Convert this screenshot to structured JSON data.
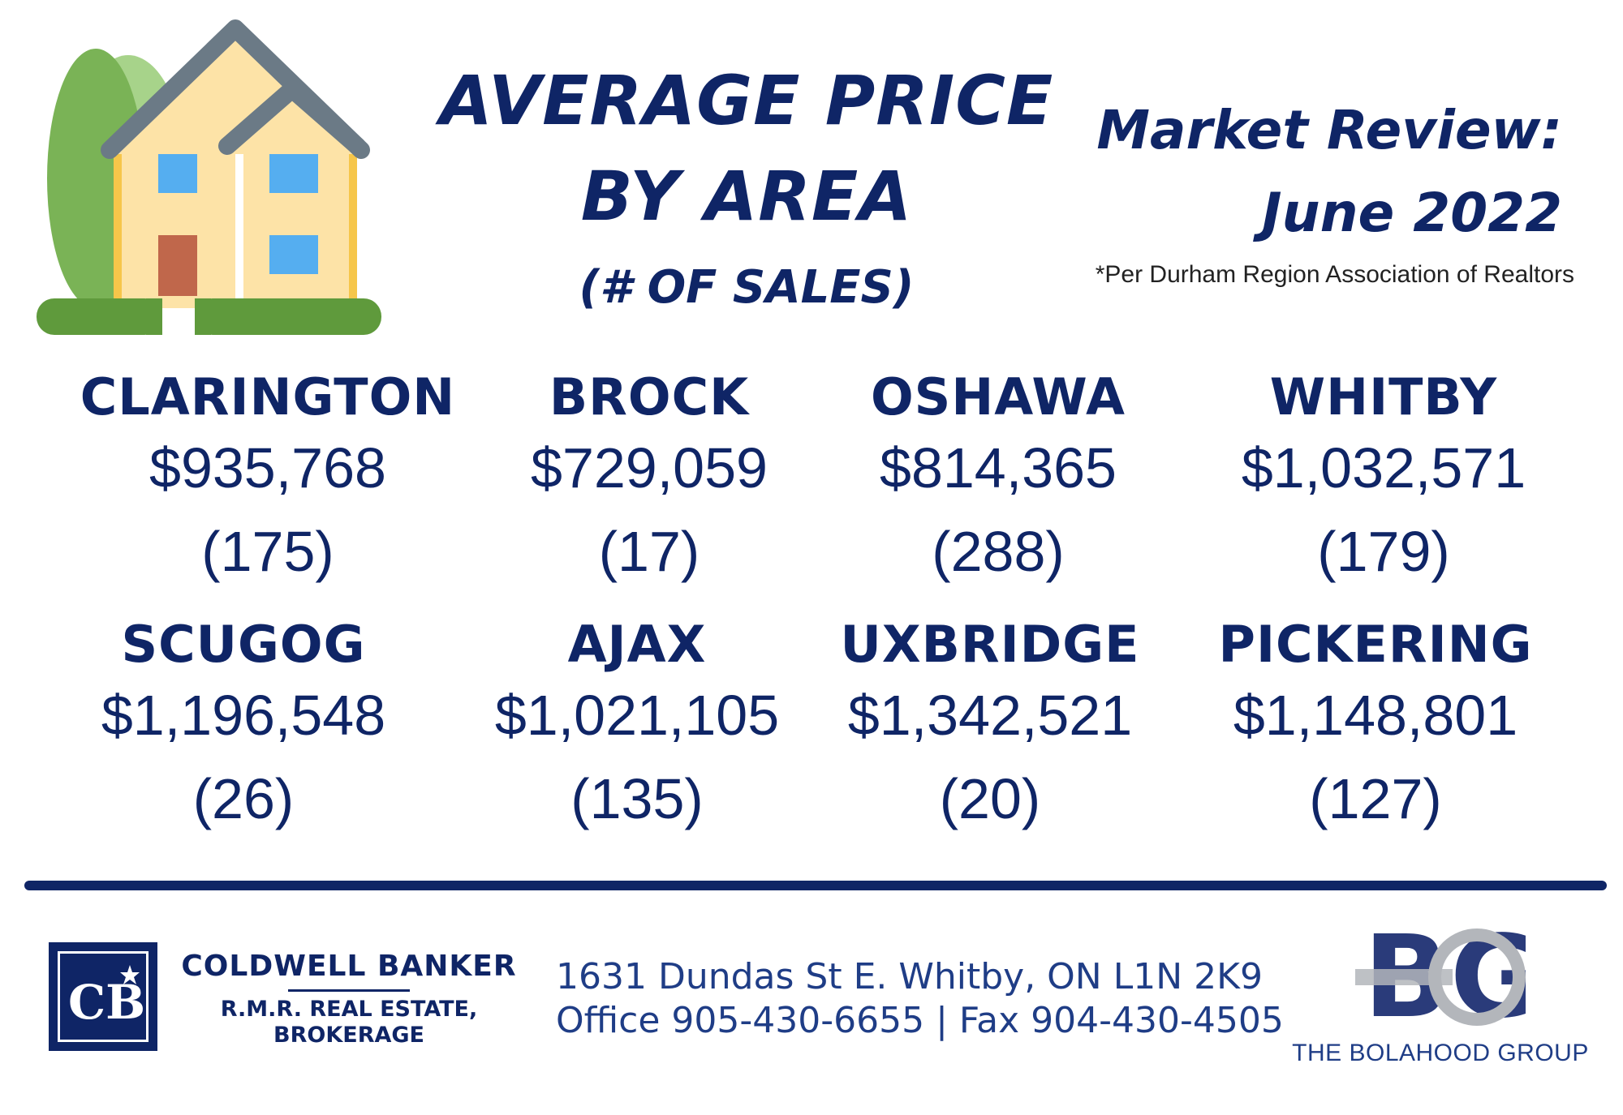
{
  "header": {
    "title_line1": "AVERAGE PRICE",
    "title_line2": "BY AREA",
    "title_line3": "(# OF SALES)",
    "review_line1": "Market Review:",
    "review_line2": "June 2022",
    "source": "*Per Durham Region Association of Realtors"
  },
  "areas": [
    {
      "name": "CLARINGTON",
      "price": "$935,768",
      "sales": "(175)"
    },
    {
      "name": "BROCK",
      "price": "$729,059",
      "sales": "(17)"
    },
    {
      "name": "OSHAWA",
      "price": "$814,365",
      "sales": "(288)"
    },
    {
      "name": "WHITBY",
      "price": "$1,032,571",
      "sales": "(179)"
    },
    {
      "name": "SCUGOG",
      "price": "$1,196,548",
      "sales": "(26)"
    },
    {
      "name": "AJAX",
      "price": "$1,021,105",
      "sales": "(135)"
    },
    {
      "name": "UXBRIDGE",
      "price": "$1,342,521",
      "sales": "(20)"
    },
    {
      "name": "PICKERING",
      "price": "$1,148,801",
      "sales": "(127)"
    }
  ],
  "footer": {
    "brokerage_name": "COLDWELL BANKER",
    "brokerage_line2": "R.M.R. REAL ESTATE,",
    "brokerage_line3": "BROKERAGE",
    "cb_logo_text": "CB",
    "address": "1631 Dundas St E. Whitby, ON L1N 2K9",
    "phones": "Office 905-430-6655 | Fax 904-430-4505",
    "group_logo_text": "BG",
    "group_name": "THE BOLAHOOD GROUP"
  },
  "colors": {
    "navy": "#0f2566",
    "house_wall": "#fde3a7",
    "roof": "#6b7a86",
    "tree_dark": "#7ab356",
    "tree_light": "#a7d38a",
    "grass": "#5f9a3c",
    "window": "#55aef0",
    "door": "#c0674b"
  },
  "icons": [
    "house-icon",
    "coldwell-banker-logo",
    "bolahood-group-logo"
  ]
}
